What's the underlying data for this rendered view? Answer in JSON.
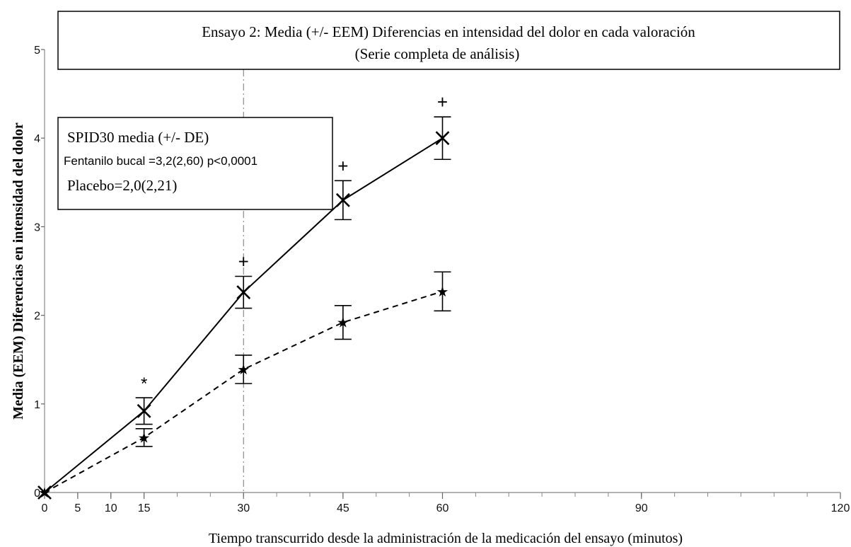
{
  "chart_data": {
    "type": "line",
    "title_line1": "Ensayo 2: Media (+/- EEM) Diferencias en intensidad del dolor en cada valoración",
    "title_line2": "(Serie completa de análisis)",
    "xlabel": "Tiempo transcurrido desde la administración de la medicación del ensayo (minutos)",
    "ylabel": "Media (EEM) Diferencias en intensidad del dolor",
    "xlim": [
      0,
      120
    ],
    "ylim": [
      0,
      5
    ],
    "x_ticks": [
      0,
      5,
      10,
      15,
      30,
      45,
      60,
      90,
      120
    ],
    "y_ticks": [
      0,
      1,
      2,
      3,
      4,
      5
    ],
    "x_minor_step": 5,
    "reference_line_x": 30,
    "annotation_box": {
      "line1": "SPID30 media (+/- DE)",
      "line2": "Fentanilo bucal =3,2(2,60) p<0,0001",
      "line3": "Placebo=2,0(2,21)"
    },
    "series": [
      {
        "key": "fentanilo",
        "style": "solid",
        "marker": "x",
        "color": "#000000",
        "x": [
          0,
          15,
          30,
          45,
          60
        ],
        "y": [
          0,
          0.92,
          2.26,
          3.3,
          4.0
        ],
        "err": [
          0,
          0.15,
          0.18,
          0.22,
          0.24
        ],
        "significance": [
          "",
          "*",
          "+",
          "+",
          "+"
        ]
      },
      {
        "key": "placebo",
        "style": "dashed",
        "marker": "star",
        "color": "#000000",
        "x": [
          0,
          15,
          30,
          45,
          60
        ],
        "y": [
          0,
          0.62,
          1.39,
          1.92,
          2.27
        ],
        "err": [
          0,
          0.1,
          0.16,
          0.19,
          0.22
        ],
        "significance": [
          "",
          "",
          "",
          "",
          ""
        ]
      }
    ]
  }
}
